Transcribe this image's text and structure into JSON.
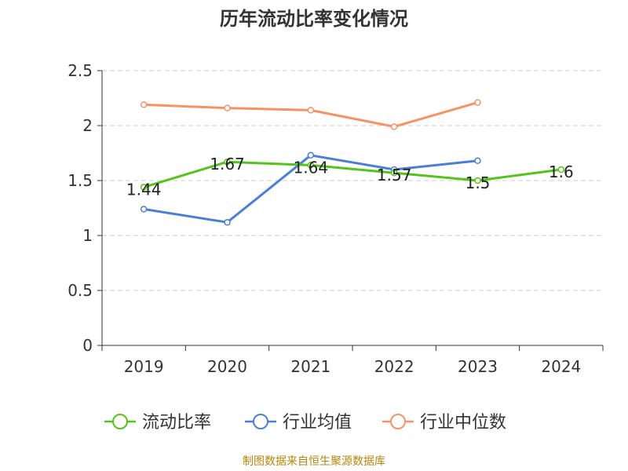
{
  "colors": {
    "series": [
      "#52c41a",
      "#4a7fd4",
      "#f59364"
    ],
    "axis": "#333333",
    "grid": "#cccccc",
    "source": "#b8860b"
  },
  "source_note": "制图数据来自恒生聚源数据库",
  "chart_data": {
    "type": "line",
    "title": "历年流动比率变化情况",
    "xlabel": "",
    "ylabel": "",
    "categories": [
      "2019",
      "2020",
      "2021",
      "2022",
      "2023",
      "2024"
    ],
    "ylim": [
      0,
      2.5
    ],
    "yticks": [
      "0",
      "0.5",
      "1",
      "1.5",
      "2",
      "2.5"
    ],
    "grid": true,
    "legend_position": "bottom",
    "series": [
      {
        "name": "流动比率",
        "values": [
          1.44,
          1.67,
          1.64,
          1.57,
          1.5,
          1.6
        ],
        "labels": [
          "1.44",
          "1.67",
          "1.64",
          "1.57",
          "1.5",
          "1.6"
        ]
      },
      {
        "name": "行业均值",
        "values": [
          1.24,
          1.12,
          1.73,
          1.6,
          1.68,
          null
        ]
      },
      {
        "name": "行业中位数",
        "values": [
          2.19,
          2.16,
          2.14,
          1.99,
          2.21,
          null
        ]
      }
    ]
  }
}
